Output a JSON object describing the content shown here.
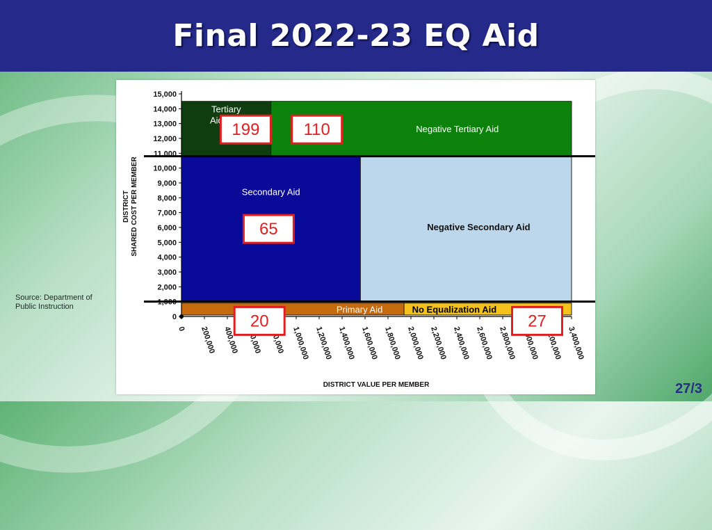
{
  "title": "Final 2022-23 EQ Aid",
  "source": "Source: Department of Public Instruction",
  "page_number": "27/3",
  "chart_data": {
    "type": "diagram",
    "xlabel": "DISTRICT VALUE PER MEMBER",
    "ylabel_line1": "DISTRICT",
    "ylabel_line2": "SHARED COST PER MEMBER",
    "x_ticks": [
      "0",
      "200,000",
      "400,000",
      "600,000",
      "800,000",
      "1,000,000",
      "1,200,000",
      "1,400,000",
      "1,600,000",
      "1,800,000",
      "2,000,000",
      "2,200,000",
      "2,400,000",
      "2,600,000",
      "2,800,000",
      "3,000,000",
      "3,200,000",
      "3,400,000"
    ],
    "y_ticks": [
      "0",
      "1,000",
      "2,000",
      "3,000",
      "4,000",
      "5,000",
      "6,000",
      "7,000",
      "8,000",
      "9,000",
      "10,000",
      "11,000",
      "12,000",
      "13,000",
      "14,000",
      "15,000"
    ],
    "xlim": [
      0,
      3400000
    ],
    "ylim": [
      0,
      15000
    ],
    "regions": [
      {
        "label": "Tertiary Aid",
        "x": [
          0,
          780000
        ],
        "y": [
          10800,
          14500
        ],
        "color": "#0f3d0f",
        "label_color": "#ffffff"
      },
      {
        "label": "Negative Tertiary Aid",
        "x": [
          780000,
          3400000
        ],
        "y": [
          10800,
          14500
        ],
        "color": "#0c820c",
        "label_color": "#ffffff"
      },
      {
        "label": "Secondary Aid",
        "x": [
          0,
          1560000
        ],
        "y": [
          1000,
          10800
        ],
        "color": "#0a0a98",
        "label_color": "#ffffff"
      },
      {
        "label": "Negative Secondary Aid",
        "x": [
          1560000,
          3400000
        ],
        "y": [
          1000,
          10800
        ],
        "color": "#bcd6ec",
        "label_color": "#111111"
      },
      {
        "label": "Primary Aid",
        "x": [
          0,
          1940000
        ],
        "y": [
          100,
          900
        ],
        "color": "#c56b0e",
        "label_color": "#ffffff"
      },
      {
        "label": "No Equalization Aid",
        "x": [
          1940000,
          3400000
        ],
        "y": [
          100,
          900
        ],
        "color": "#f5c21c",
        "label_color": "#000000"
      }
    ],
    "thresholds": [
      1000,
      10800
    ],
    "counts": [
      {
        "value": "199",
        "region": "Tertiary Aid"
      },
      {
        "value": "110",
        "region": "Negative Tertiary Aid"
      },
      {
        "value": "65",
        "region": "Secondary Aid"
      },
      {
        "value": "20",
        "region": "Primary Aid"
      },
      {
        "value": "27",
        "region": "No Equalization Aid"
      }
    ]
  }
}
